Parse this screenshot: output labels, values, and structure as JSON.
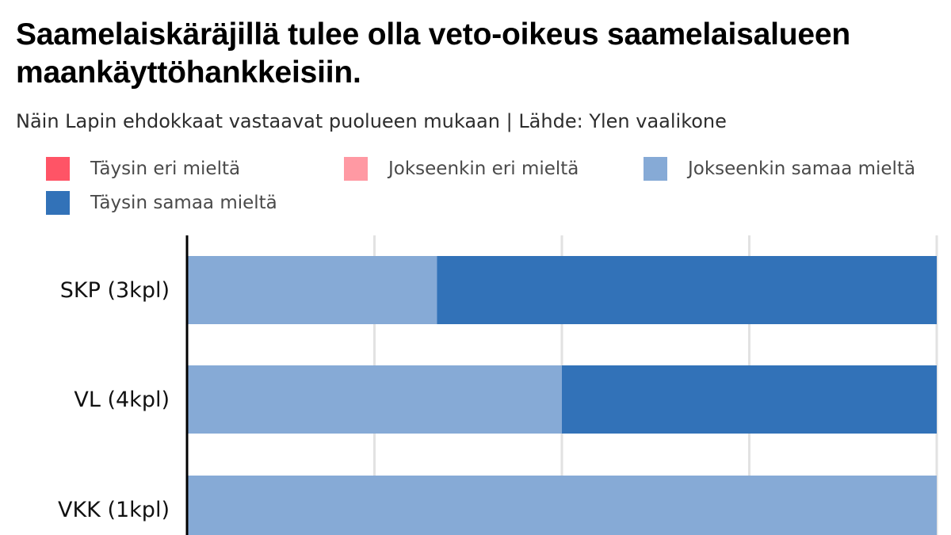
{
  "title": "Saamelaiskäräjillä tulee olla veto-oikeus saamelaisalueen maankäyttöhankkeisiin.",
  "subtitle": "Näin Lapin ehdokkaat vastaavat puolueen mukaan | Lähde: Ylen vaalikone",
  "legend": [
    {
      "label": "Täysin eri mieltä",
      "color": "#ff5466"
    },
    {
      "label": "Jokseenkin eri mieltä",
      "color": "#ff99a3"
    },
    {
      "label": "Jokseenkin samaa mieltä",
      "color": "#86aad6"
    },
    {
      "label": "Täysin samaa mieltä",
      "color": "#3272b8"
    }
  ],
  "chart_data": {
    "type": "bar",
    "orientation": "horizontal",
    "stacked": true,
    "normalized": true,
    "categories": [
      "SKP (3kpl)",
      "VL (4kpl)",
      "VKK (1kpl)"
    ],
    "series": [
      {
        "name": "Täysin eri mieltä",
        "color": "#ff5466",
        "values": [
          0,
          0,
          0
        ]
      },
      {
        "name": "Jokseenkin eri mieltä",
        "color": "#ff99a3",
        "values": [
          0,
          0,
          0
        ]
      },
      {
        "name": "Jokseenkin samaa mieltä",
        "color": "#86aad6",
        "values": [
          33.33,
          50,
          100
        ]
      },
      {
        "name": "Täysin samaa mieltä",
        "color": "#3272b8",
        "values": [
          66.67,
          50,
          0
        ]
      }
    ],
    "xlim": [
      0,
      100
    ],
    "grid": true,
    "legend_position": "top"
  }
}
